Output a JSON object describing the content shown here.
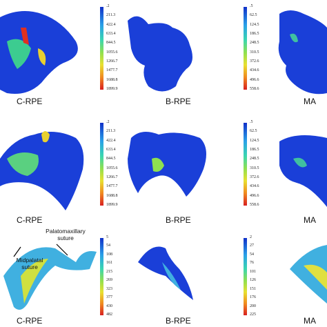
{
  "rows": [
    {
      "labels": [
        "C-RPE",
        "B-RPE",
        "MA"
      ],
      "scales": [
        [
          ".2",
          "211.3",
          "422.4",
          "633.4",
          "844.5",
          "1055.6",
          "1266.7",
          "1477.7",
          "1688.8",
          "1899.9"
        ],
        [
          ".5",
          "62.5",
          "124.5",
          "186.5",
          "248.5",
          "310.5",
          "372.6",
          "434.6",
          "496.6",
          "558.6"
        ]
      ]
    },
    {
      "labels": [
        "C-RPE",
        "B-RPE",
        "MA"
      ],
      "scales": [
        [
          ".2",
          "211.3",
          "422.4",
          "633.4",
          "844.5",
          "1055.6",
          "1266.7",
          "1477.7",
          "1688.8",
          "1899.9"
        ],
        [
          ".5",
          "62.5",
          "124.5",
          "186.5",
          "248.5",
          "310.5",
          "372.6",
          "434.6",
          "496.6",
          "558.6"
        ]
      ]
    },
    {
      "labels": [
        "C-RPE",
        "B-RPE",
        "MA"
      ],
      "scales": [
        [
          "5",
          "54",
          "108",
          "161",
          "215",
          "269",
          "323",
          "377",
          "430",
          "482"
        ],
        [
          "2",
          "27",
          "54",
          "76",
          "101",
          "126",
          "151",
          "176",
          "200",
          "225"
        ]
      ]
    }
  ],
  "annotations": {
    "palatomaxillary": "Palatomaxillary suture",
    "midpalatal": "Midpalatal suture"
  }
}
